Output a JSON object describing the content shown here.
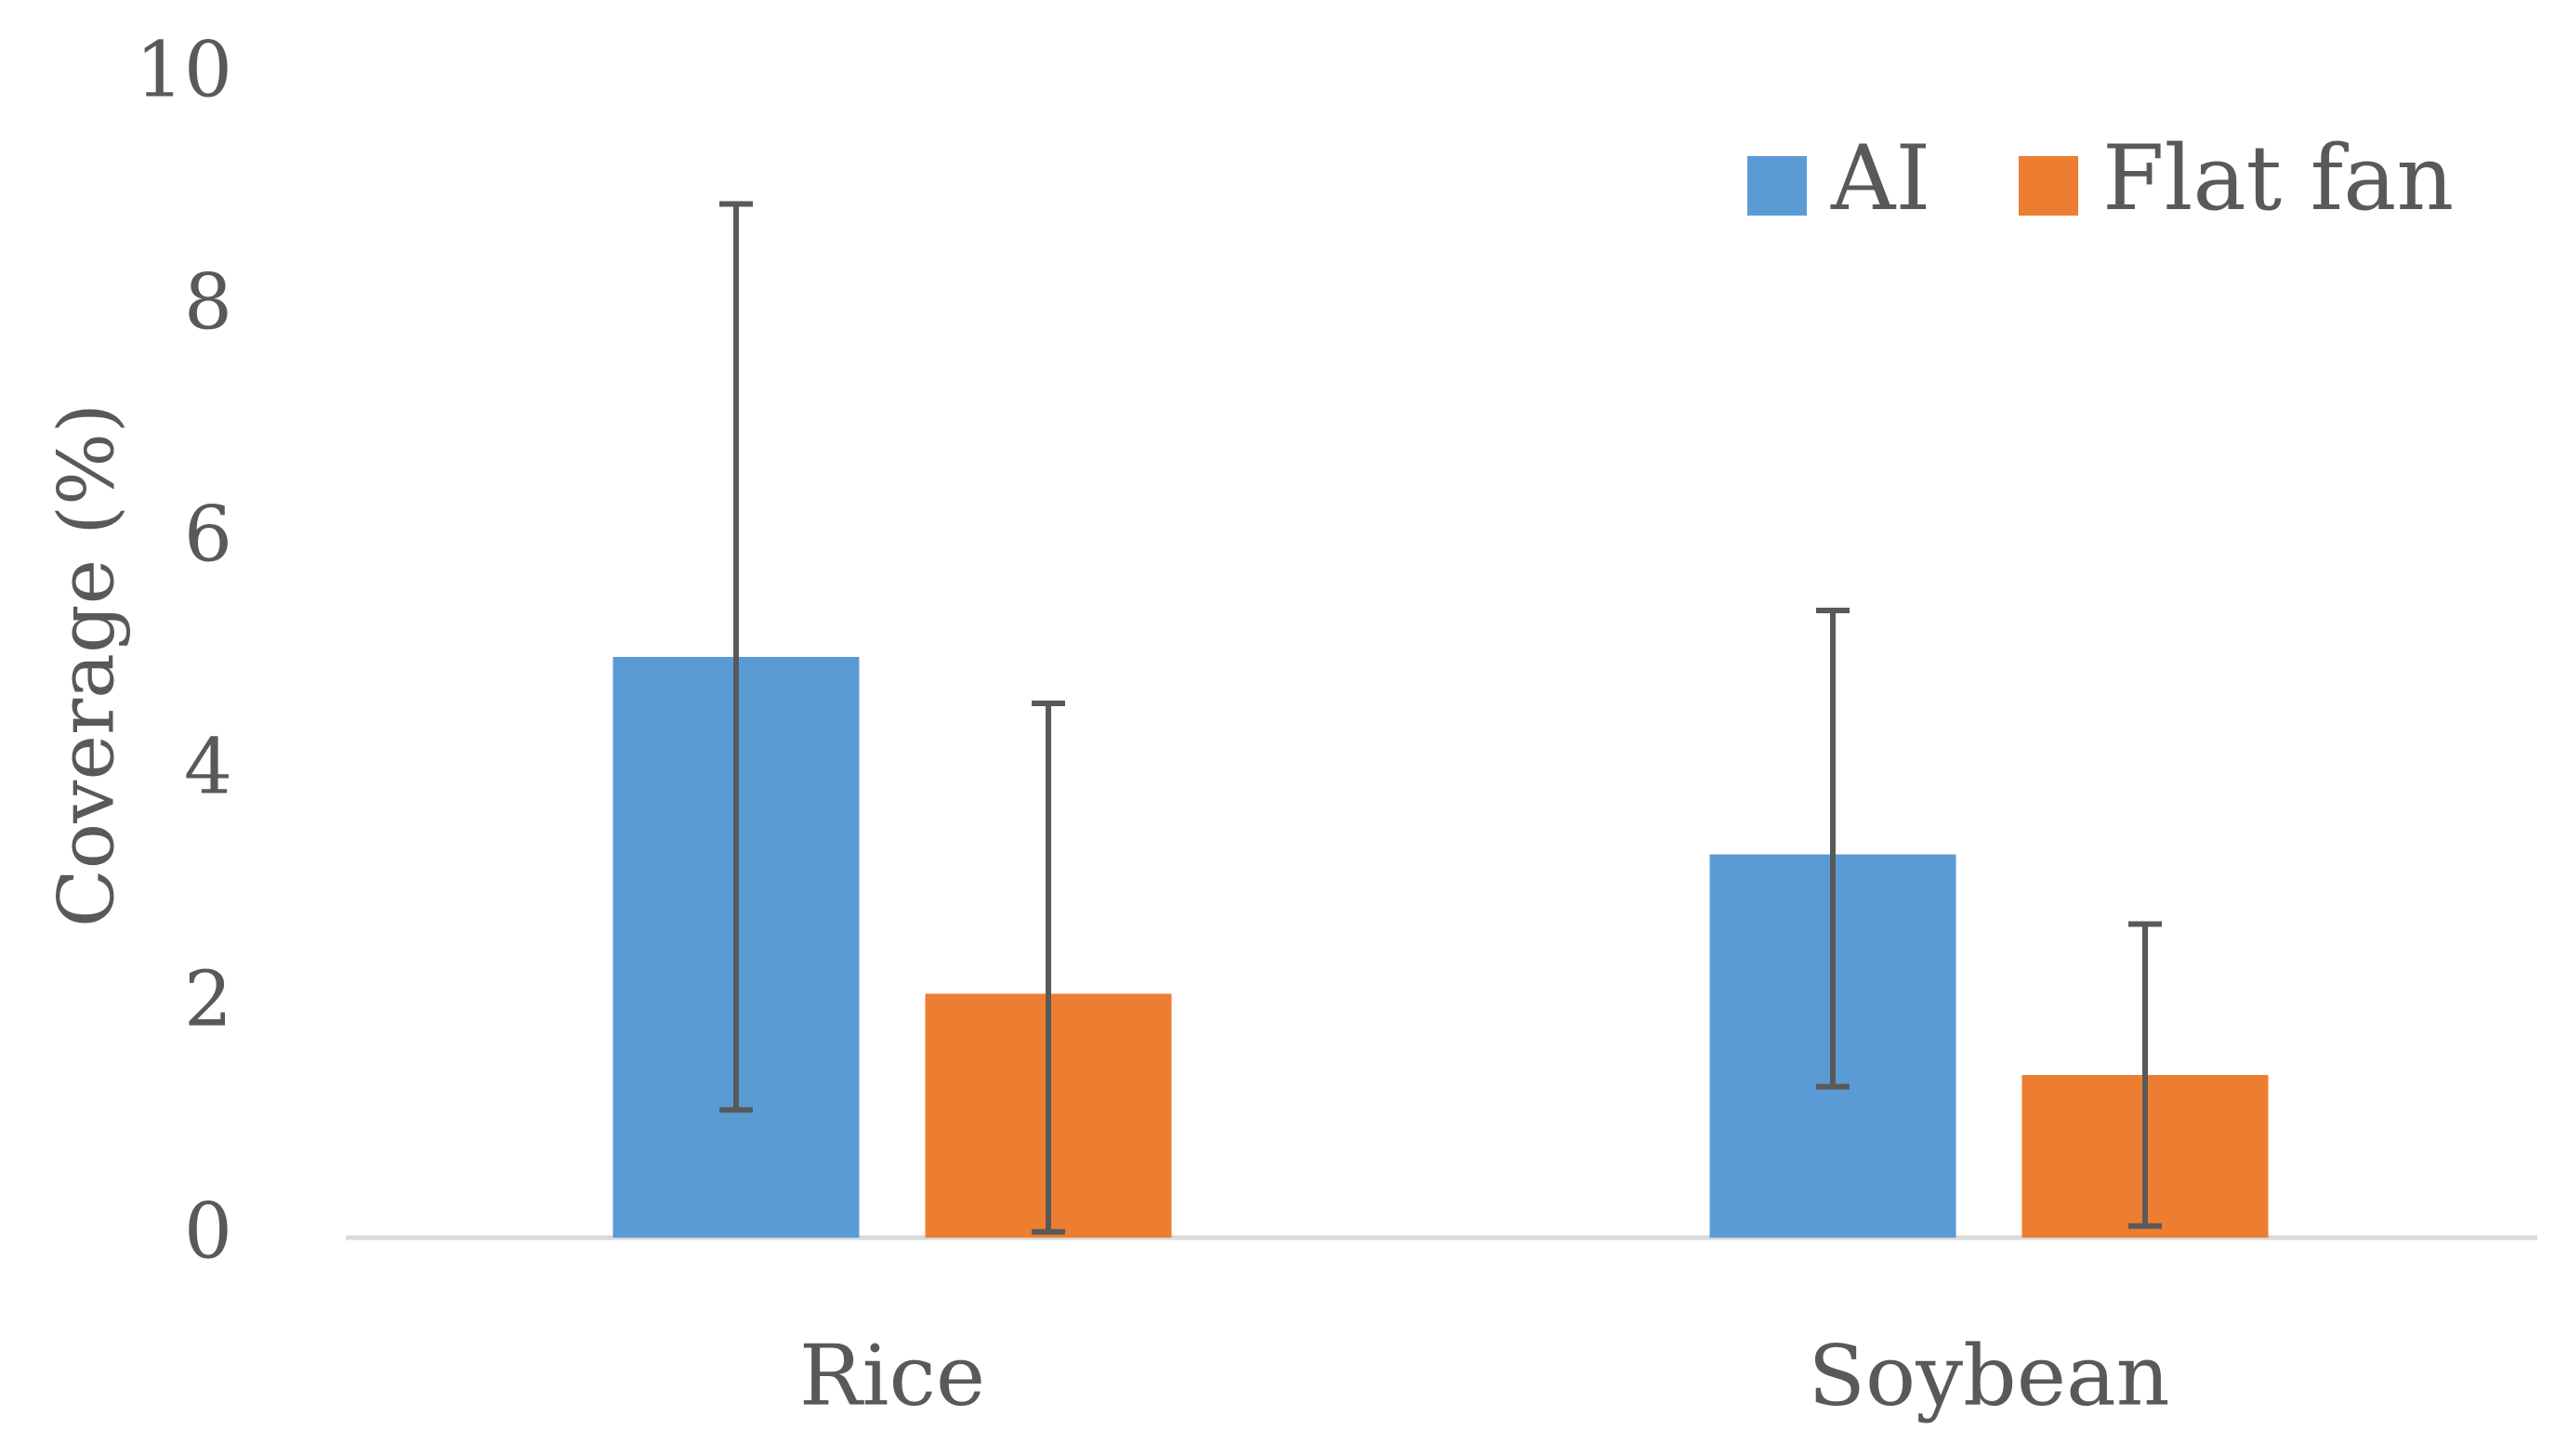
{
  "chart_data": {
    "type": "bar",
    "categories": [
      "Rice",
      "Soybean"
    ],
    "series": [
      {
        "name": "AI",
        "color": "#5B9BD5",
        "values": [
          5.0,
          3.3
        ],
        "error_low": [
          1.1,
          1.3
        ],
        "error_high": [
          8.9,
          5.4
        ]
      },
      {
        "name": "Flat fan",
        "color": "#ED7D31",
        "values": [
          2.1,
          1.4
        ],
        "error_low": [
          0.05,
          0.1
        ],
        "error_high": [
          4.6,
          2.7
        ]
      }
    ],
    "title": "",
    "xlabel": "",
    "ylabel": "Coverage (%)",
    "ylim": [
      0,
      10
    ],
    "yticks": [
      0,
      2,
      4,
      6,
      8,
      10
    ],
    "grid": false,
    "legend_position": "top-right"
  }
}
